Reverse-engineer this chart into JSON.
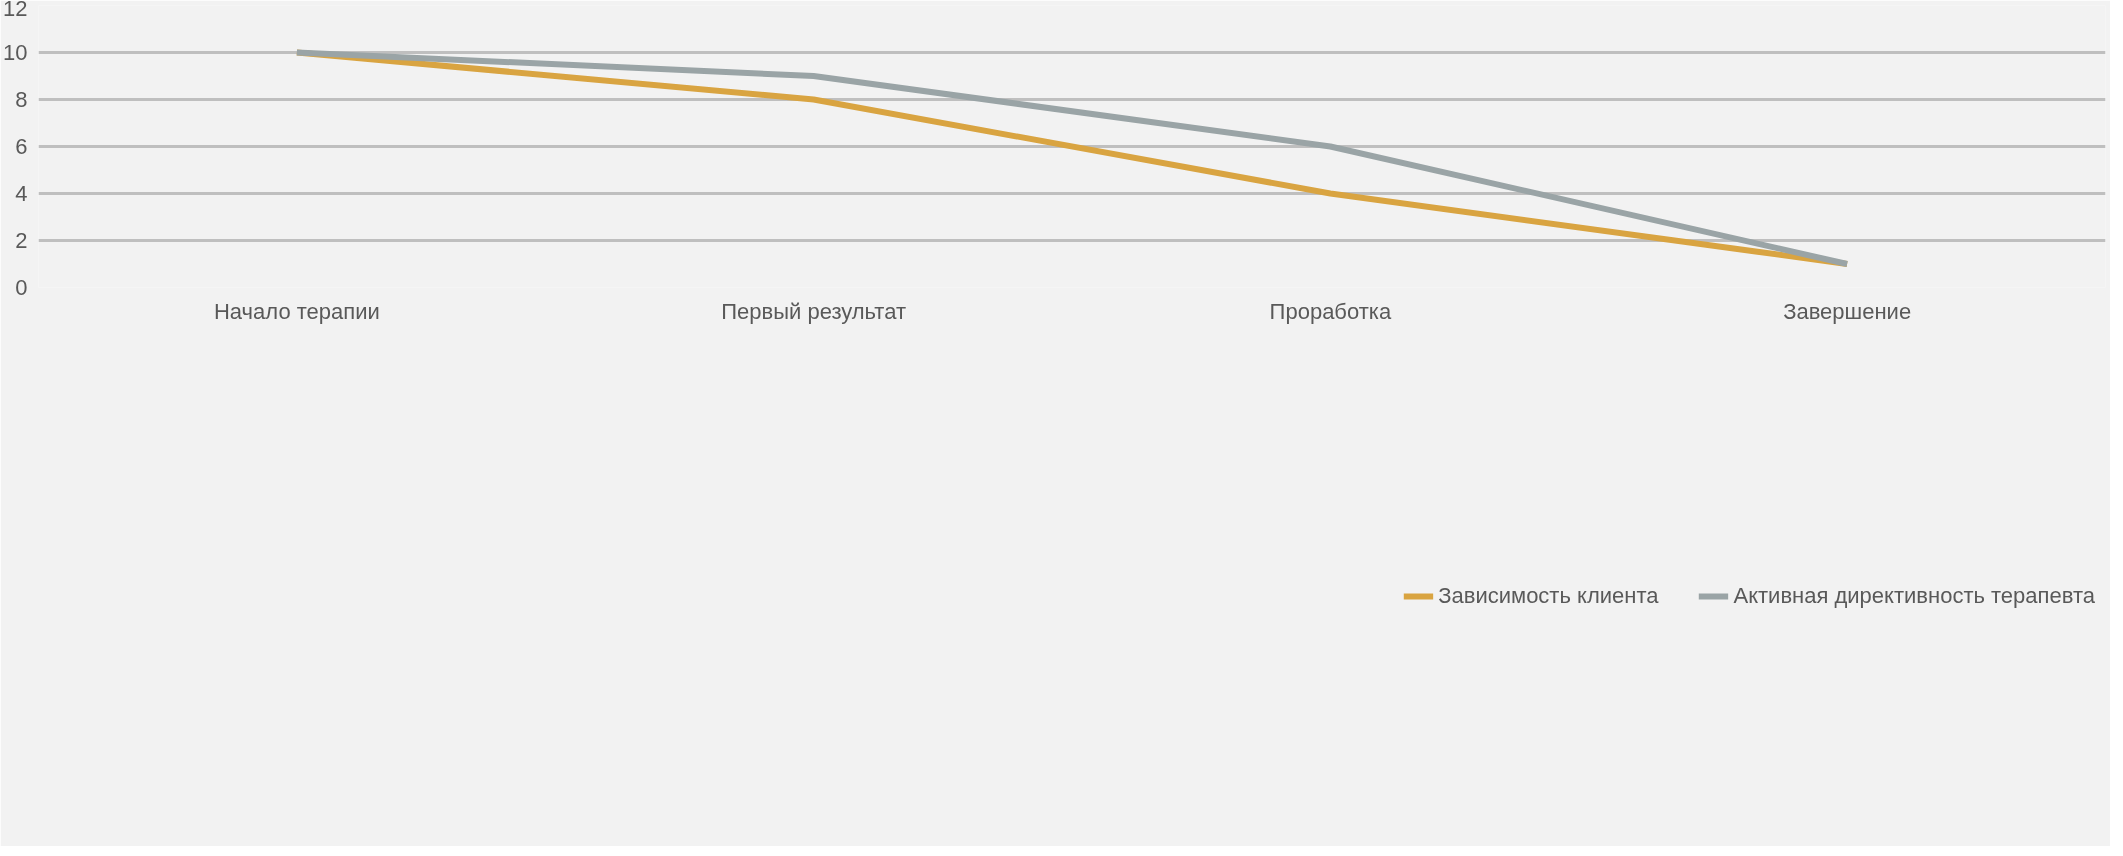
{
  "chart_data": {
    "type": "line",
    "categories": [
      "Начало терапии",
      "Первый результат",
      "Проработка",
      "Завершение"
    ],
    "series": [
      {
        "name": "Зависимость клиента",
        "color": "#d9a441",
        "values": [
          10,
          8,
          4,
          1
        ]
      },
      {
        "name": "Активная директивность терапевта",
        "color": "#9aa4a6",
        "values": [
          10,
          9,
          6,
          1
        ]
      }
    ],
    "ylim": [
      0,
      12
    ],
    "yticks": [
      0,
      2,
      4,
      6,
      8,
      10,
      12
    ],
    "grid": "y",
    "legend": "bottom",
    "marker": "none",
    "line_style": "solid"
  }
}
